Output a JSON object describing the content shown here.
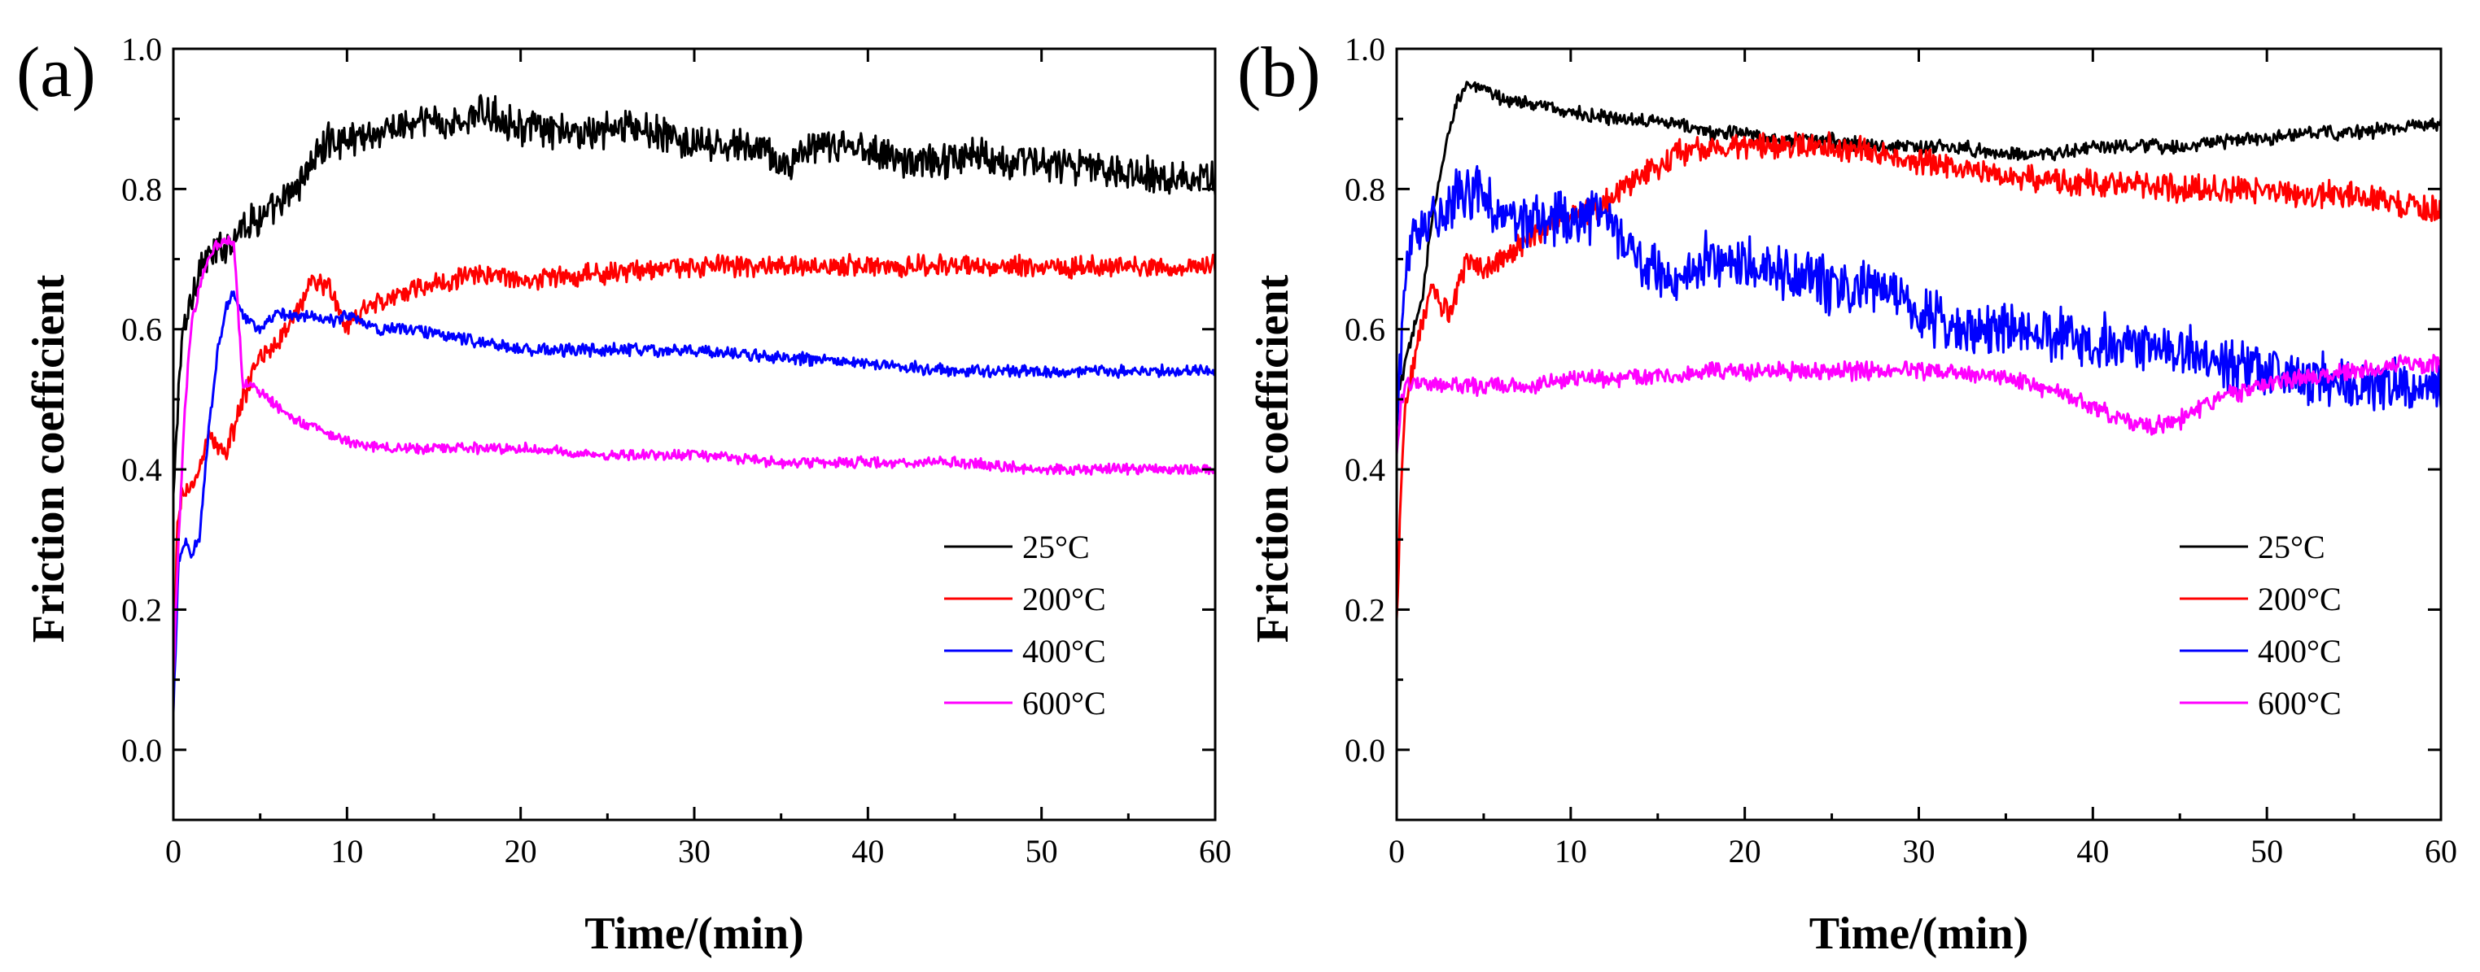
{
  "chart_data": [
    {
      "type": "line",
      "panel_label": "(a)",
      "xlabel": "Time/(min)",
      "ylabel": "Friction coefficient",
      "xlim": [
        0,
        60
      ],
      "ylim": [
        -0.1,
        1.0
      ],
      "xticks": [
        0,
        10,
        20,
        30,
        40,
        50,
        60
      ],
      "xtick_labels": [
        "0",
        "10",
        "20",
        "30",
        "40",
        "50",
        "60"
      ],
      "yticks": [
        0.0,
        0.2,
        0.4,
        0.6,
        0.8,
        1.0
      ],
      "ytick_labels": [
        "0.0",
        "0.2",
        "0.4",
        "0.6",
        "0.8",
        "1.0"
      ],
      "grid": false,
      "legend_position": "bottom-right",
      "series": [
        {
          "name": "25°C",
          "color": "#000000",
          "x": [
            0,
            0.3,
            0.6,
            1,
            1.5,
            2,
            3,
            4,
            5,
            6,
            7,
            8,
            9,
            10,
            11,
            12,
            13,
            14,
            15,
            16,
            17,
            18,
            19,
            20,
            22,
            24,
            26,
            28,
            30,
            32,
            34,
            35,
            36,
            38,
            40,
            42,
            44,
            46,
            48,
            50,
            52,
            54,
            56,
            58,
            60
          ],
          "y": [
            0.35,
            0.52,
            0.6,
            0.64,
            0.69,
            0.7,
            0.72,
            0.75,
            0.76,
            0.77,
            0.8,
            0.84,
            0.87,
            0.87,
            0.88,
            0.88,
            0.89,
            0.89,
            0.9,
            0.89,
            0.9,
            0.91,
            0.9,
            0.89,
            0.88,
            0.88,
            0.89,
            0.88,
            0.86,
            0.86,
            0.86,
            0.83,
            0.85,
            0.86,
            0.86,
            0.84,
            0.84,
            0.85,
            0.84,
            0.84,
            0.83,
            0.83,
            0.82,
            0.82,
            0.81
          ],
          "noise": 0.02
        },
        {
          "name": "200°C",
          "color": "#ff0000",
          "x": [
            0,
            0.2,
            0.5,
            1,
            1.5,
            2,
            3,
            4,
            5,
            6,
            7,
            8,
            9,
            10,
            11,
            12,
            14,
            16,
            18,
            20,
            25,
            30,
            35,
            40,
            45,
            50,
            55,
            60
          ],
          "y": [
            0.05,
            0.3,
            0.37,
            0.37,
            0.4,
            0.45,
            0.42,
            0.5,
            0.56,
            0.58,
            0.62,
            0.67,
            0.66,
            0.6,
            0.63,
            0.64,
            0.66,
            0.67,
            0.68,
            0.67,
            0.68,
            0.69,
            0.69,
            0.69,
            0.69,
            0.69,
            0.69,
            0.69
          ],
          "noise": 0.012
        },
        {
          "name": "400°C",
          "color": "#0000ff",
          "x": [
            0,
            0.3,
            0.7,
            1,
            1.5,
            2,
            2.5,
            3,
            3.5,
            4,
            5,
            6,
            7,
            8,
            9,
            10,
            11,
            12,
            14,
            16,
            18,
            20,
            25,
            30,
            35,
            40,
            45,
            50,
            55,
            60
          ],
          "y": [
            0.05,
            0.27,
            0.3,
            0.28,
            0.3,
            0.45,
            0.56,
            0.63,
            0.65,
            0.62,
            0.6,
            0.62,
            0.62,
            0.62,
            0.61,
            0.62,
            0.61,
            0.6,
            0.6,
            0.59,
            0.58,
            0.57,
            0.57,
            0.57,
            0.56,
            0.55,
            0.54,
            0.54,
            0.54,
            0.54
          ],
          "noise": 0.007
        },
        {
          "name": "600°C",
          "color": "#ff00ff",
          "x": [
            0,
            0.3,
            0.7,
            1,
            1.5,
            2,
            2.5,
            3,
            3.5,
            4,
            4.5,
            5,
            6,
            7,
            8,
            9,
            10,
            12,
            15,
            20,
            25,
            30,
            35,
            40,
            45,
            50,
            55,
            60
          ],
          "y": [
            0.1,
            0.3,
            0.5,
            0.6,
            0.66,
            0.7,
            0.72,
            0.73,
            0.72,
            0.52,
            0.52,
            0.51,
            0.49,
            0.47,
            0.46,
            0.45,
            0.44,
            0.43,
            0.43,
            0.43,
            0.42,
            0.42,
            0.41,
            0.41,
            0.41,
            0.4,
            0.4,
            0.4
          ],
          "noise": 0.006
        }
      ]
    },
    {
      "type": "line",
      "panel_label": "(b)",
      "xlabel": "Time/(min)",
      "ylabel": "Friction coefficient",
      "xlim": [
        0,
        60
      ],
      "ylim": [
        -0.1,
        1.0
      ],
      "xticks": [
        0,
        10,
        20,
        30,
        40,
        50,
        60
      ],
      "xtick_labels": [
        "0",
        "10",
        "20",
        "30",
        "40",
        "50",
        "60"
      ],
      "yticks": [
        0.0,
        0.2,
        0.4,
        0.6,
        0.8,
        1.0
      ],
      "ytick_labels": [
        "0.0",
        "0.2",
        "0.4",
        "0.6",
        "0.8",
        "1.0"
      ],
      "grid": false,
      "legend_position": "bottom-right",
      "series": [
        {
          "name": "25°C",
          "color": "#000000",
          "x": [
            0,
            0.5,
            1,
            1.5,
            2,
            2.5,
            3,
            3.5,
            4,
            5,
            6,
            8,
            10,
            12,
            15,
            18,
            20,
            22,
            25,
            28,
            30,
            32,
            35,
            38,
            40,
            42,
            45,
            48,
            50,
            52,
            55,
            58,
            60
          ],
          "y": [
            0.5,
            0.55,
            0.6,
            0.65,
            0.75,
            0.82,
            0.88,
            0.93,
            0.95,
            0.94,
            0.93,
            0.92,
            0.91,
            0.9,
            0.9,
            0.88,
            0.88,
            0.87,
            0.87,
            0.86,
            0.86,
            0.86,
            0.85,
            0.85,
            0.86,
            0.86,
            0.86,
            0.87,
            0.87,
            0.88,
            0.88,
            0.89,
            0.89
          ],
          "noise": 0.008
        },
        {
          "name": "200°C",
          "color": "#ff0000",
          "x": [
            0,
            0.2,
            0.5,
            1,
            1.5,
            2,
            3,
            4,
            5,
            6,
            7,
            8,
            10,
            12,
            14,
            16,
            18,
            20,
            22,
            25,
            28,
            30,
            32,
            35,
            38,
            40,
            45,
            50,
            55,
            60
          ],
          "y": [
            0.18,
            0.35,
            0.5,
            0.55,
            0.62,
            0.65,
            0.62,
            0.7,
            0.68,
            0.7,
            0.72,
            0.74,
            0.76,
            0.78,
            0.82,
            0.85,
            0.86,
            0.86,
            0.86,
            0.86,
            0.85,
            0.84,
            0.83,
            0.82,
            0.81,
            0.81,
            0.8,
            0.8,
            0.79,
            0.77
          ],
          "noise": 0.015
        },
        {
          "name": "400°C",
          "color": "#0000ff",
          "x": [
            0,
            0.3,
            0.6,
            1,
            2,
            3,
            4,
            5,
            6,
            7,
            8,
            10,
            12,
            13,
            14,
            16,
            18,
            20,
            22,
            25,
            28,
            30,
            32,
            35,
            38,
            40,
            42,
            45,
            48,
            50,
            52,
            55,
            58,
            60
          ],
          "y": [
            0.45,
            0.6,
            0.7,
            0.75,
            0.76,
            0.78,
            0.79,
            0.8,
            0.76,
            0.75,
            0.75,
            0.76,
            0.76,
            0.72,
            0.7,
            0.67,
            0.7,
            0.7,
            0.68,
            0.66,
            0.65,
            0.62,
            0.6,
            0.6,
            0.59,
            0.58,
            0.58,
            0.57,
            0.55,
            0.54,
            0.53,
            0.52,
            0.52,
            0.52
          ],
          "noise": 0.03
        },
        {
          "name": "600°C",
          "color": "#ff00ff",
          "x": [
            0,
            0.3,
            0.6,
            1,
            2,
            3,
            5,
            8,
            10,
            12,
            15,
            18,
            20,
            22,
            25,
            28,
            30,
            32,
            35,
            38,
            40,
            42,
            43,
            45,
            47,
            50,
            52,
            55,
            58,
            60
          ],
          "y": [
            0.42,
            0.5,
            0.52,
            0.52,
            0.52,
            0.52,
            0.52,
            0.52,
            0.53,
            0.53,
            0.53,
            0.54,
            0.54,
            0.54,
            0.54,
            0.54,
            0.54,
            0.54,
            0.53,
            0.51,
            0.49,
            0.47,
            0.46,
            0.47,
            0.5,
            0.52,
            0.53,
            0.54,
            0.55,
            0.55
          ],
          "noise": 0.01
        }
      ]
    }
  ]
}
